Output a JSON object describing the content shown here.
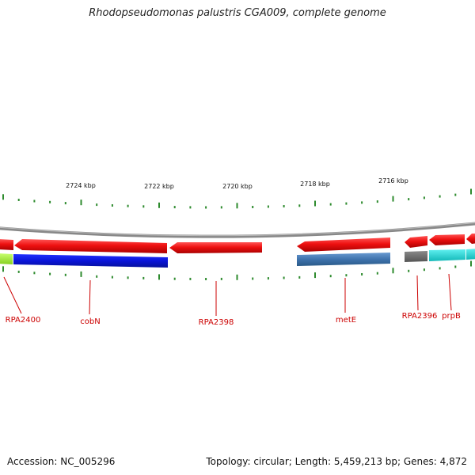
{
  "title": "Rhodopseudomonas palustris CGA009, complete genome",
  "footer": {
    "accession": "Accession: NC_005296",
    "summary": "Topology: circular; Length: 5,459,213 bp; Genes: 4,872"
  },
  "colors": {
    "backbone": "#888888",
    "ticks": "#2e8b2e",
    "gene_red": "#ee1111",
    "label_red": "#cc0000",
    "blue": "#0a14d8",
    "steel_blue": "#3f73ad",
    "lime": "#a6f03c",
    "gray": "#6b6b6b",
    "cyan": "#22d4d4"
  },
  "ticks": {
    "unit": "kbp",
    "labels": [
      "2724 kbp",
      "2722 kbp",
      "2720 kbp",
      "2718 kbp",
      "2716 kbp"
    ]
  },
  "genes": [
    {
      "label": "RPA2400",
      "color": "lime"
    },
    {
      "label": "cobN",
      "color": "blue"
    },
    {
      "label": "RPA2398",
      "color": "gene_red"
    },
    {
      "label": "metE",
      "color": "steel_blue"
    },
    {
      "label": "RPA2396",
      "color": "gray"
    },
    {
      "label": "prpB",
      "color": "cyan"
    }
  ]
}
